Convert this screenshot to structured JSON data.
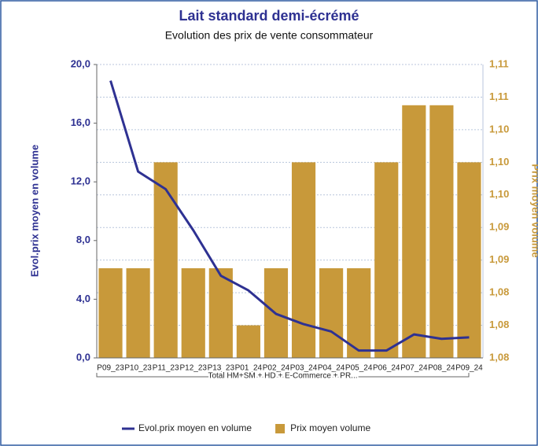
{
  "chart_data": {
    "type": "bar-line",
    "title": "Lait standard demi-écrémé",
    "subtitle": "Evolution des prix de vente consommateur",
    "ylabel": "Evol.prix moyen en volume",
    "y2label": "Prix moyen volume",
    "group_label": "Total HM+SM + HD + E-Commerce + PR...",
    "categories": [
      "P09_23",
      "P10_23",
      "P11_23",
      "P12_23",
      "P13_23",
      "P01_24",
      "P02_24",
      "P03_24",
      "P04_24",
      "P05_24",
      "P06_24",
      "P07_24",
      "P08_24",
      "P09_24"
    ],
    "series": [
      {
        "name": "Evol.prix moyen en volume",
        "type": "line",
        "color": "#2e3192",
        "axis": "y",
        "values": [
          18.9,
          12.7,
          11.5,
          8.7,
          5.6,
          4.6,
          3.0,
          2.3,
          1.8,
          0.5,
          0.5,
          1.6,
          1.3,
          1.4
        ]
      },
      {
        "name": "Prix moyen volume",
        "type": "bar",
        "color": "#c8993a",
        "axis": "y2",
        "values": [
          1.087,
          1.087,
          1.1,
          1.087,
          1.087,
          1.08,
          1.087,
          1.1,
          1.087,
          1.087,
          1.1,
          1.107,
          1.107,
          1.1
        ]
      }
    ],
    "ylim": [
      0,
      20
    ],
    "yticks": [
      {
        "value": 0,
        "label": "0,0"
      },
      {
        "value": 4,
        "label": "4,0"
      },
      {
        "value": 8,
        "label": "8,0"
      },
      {
        "value": 12,
        "label": "12,0"
      },
      {
        "value": 16,
        "label": "16,0"
      },
      {
        "value": 20,
        "label": "20,0"
      }
    ],
    "y2lim": [
      1.076,
      1.112
    ],
    "y2ticks": [
      {
        "value": 1.076,
        "label": "1,08"
      },
      {
        "value": 1.08,
        "label": "1,08"
      },
      {
        "value": 1.084,
        "label": "1,08"
      },
      {
        "value": 1.088,
        "label": "1,09"
      },
      {
        "value": 1.092,
        "label": "1,09"
      },
      {
        "value": 1.096,
        "label": "1,10"
      },
      {
        "value": 1.1,
        "label": "1,10"
      },
      {
        "value": 1.104,
        "label": "1,10"
      },
      {
        "value": 1.108,
        "label": "1,11"
      },
      {
        "value": 1.112,
        "label": "1,11"
      }
    ],
    "grid": true,
    "legend": "bottom"
  }
}
